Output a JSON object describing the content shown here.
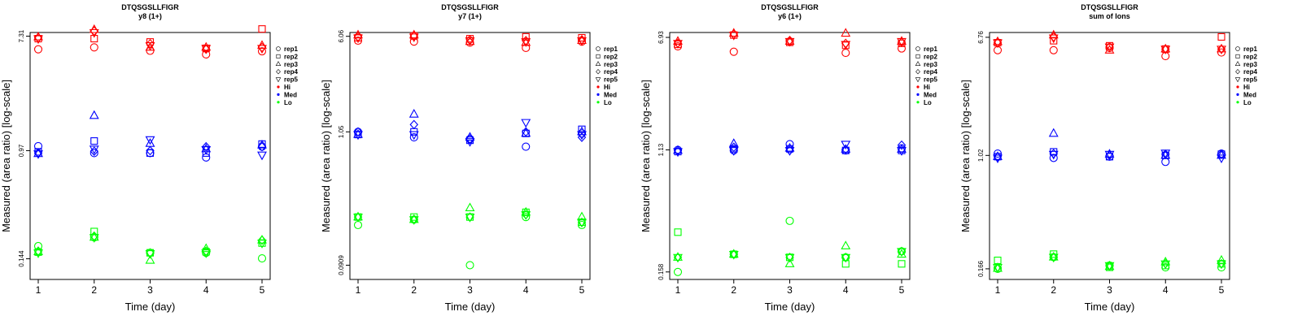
{
  "colors": {
    "Hi": "#ff0000",
    "Med": "#0000ff",
    "Lo": "#00ff00"
  },
  "legend": [
    {
      "label": "rep1",
      "kind": "shape",
      "shape": "circle"
    },
    {
      "label": "rep2",
      "kind": "shape",
      "shape": "square"
    },
    {
      "label": "rep3",
      "kind": "shape",
      "shape": "triangle-up"
    },
    {
      "label": "rep4",
      "kind": "shape",
      "shape": "diamond"
    },
    {
      "label": "rep5",
      "kind": "shape",
      "shape": "triangle-down"
    },
    {
      "label": "Hi",
      "kind": "dot",
      "color": "#ff0000"
    },
    {
      "label": "Med",
      "kind": "dot",
      "color": "#0000ff"
    },
    {
      "label": "Lo",
      "kind": "dot",
      "color": "#00ff00"
    }
  ],
  "chart_data": [
    {
      "type": "scatter",
      "title": "DTQSGSLLFIGR",
      "subtitle": "y8 (1+)",
      "xlabel": "Time (day)",
      "ylabel": "Measured (area ratio) [log-scale]",
      "x": [
        1,
        2,
        3,
        4,
        5
      ],
      "yticks": [
        "0.144",
        "0.97",
        "7.31"
      ],
      "ylim": [
        0.1,
        7.8
      ],
      "yscale": "log",
      "series": [
        {
          "name": "rep1",
          "level": "Hi",
          "values": [
            5.8,
            6.0,
            5.65,
            5.3,
            5.6
          ]
        },
        {
          "name": "rep2",
          "level": "Hi",
          "values": [
            7.0,
            7.0,
            6.6,
            5.9,
            8.3
          ]
        },
        {
          "name": "rep3",
          "level": "Hi",
          "values": [
            7.2,
            8.2,
            6.0,
            6.0,
            6.2
          ]
        },
        {
          "name": "rep4",
          "level": "Hi",
          "values": [
            7.1,
            8.0,
            6.4,
            5.8,
            6.0
          ]
        },
        {
          "name": "rep5",
          "level": "Hi",
          "values": [
            7.0,
            7.8,
            6.2,
            5.9,
            5.9
          ]
        },
        {
          "name": "rep1",
          "level": "Med",
          "values": [
            1.05,
            0.93,
            0.93,
            0.86,
            1.04
          ]
        },
        {
          "name": "rep2",
          "level": "Med",
          "values": [
            0.95,
            1.15,
            0.93,
            0.93,
            1.09
          ]
        },
        {
          "name": "rep3",
          "level": "Med",
          "values": [
            0.92,
            1.8,
            1.1,
            1.0,
            1.07
          ]
        },
        {
          "name": "rep4",
          "level": "Med",
          "values": [
            0.93,
            0.96,
            0.97,
            1.04,
            1.04
          ]
        },
        {
          "name": "rep5",
          "level": "Med",
          "values": [
            0.92,
            1.0,
            1.18,
            0.99,
            0.9
          ]
        },
        {
          "name": "rep1",
          "level": "Lo",
          "values": [
            0.18,
            0.21,
            0.16,
            0.16,
            0.145
          ]
        },
        {
          "name": "rep2",
          "level": "Lo",
          "values": [
            0.162,
            0.233,
            0.16,
            0.163,
            0.19
          ]
        },
        {
          "name": "rep3",
          "level": "Lo",
          "values": [
            0.163,
            0.21,
            0.14,
            0.172,
            0.2
          ]
        },
        {
          "name": "rep4",
          "level": "Lo",
          "values": [
            0.165,
            0.215,
            0.16,
            0.165,
            0.2
          ]
        },
        {
          "name": "rep5",
          "level": "Lo",
          "values": [
            0.16,
            0.21,
            0.158,
            0.16,
            0.19
          ]
        }
      ]
    },
    {
      "type": "scatter",
      "title": "DTQSGSLLFIGR",
      "subtitle": "y7 (1+)",
      "xlabel": "Time (day)",
      "ylabel": "Measured (area ratio) [log-scale]",
      "x": [
        1,
        2,
        3,
        4,
        5
      ],
      "yticks": [
        "0.0909",
        "1.05",
        "6.06"
      ],
      "ylim": [
        0.07,
        6.5
      ],
      "yscale": "log",
      "series": [
        {
          "name": "rep1",
          "level": "Hi",
          "values": [
            5.6,
            5.5,
            5.4,
            4.9,
            5.5
          ]
        },
        {
          "name": "rep2",
          "level": "Hi",
          "values": [
            5.9,
            6.1,
            5.8,
            6.0,
            5.9
          ]
        },
        {
          "name": "rep3",
          "level": "Hi",
          "values": [
            6.2,
            6.2,
            5.5,
            5.4,
            5.6
          ]
        },
        {
          "name": "rep4",
          "level": "Hi",
          "values": [
            6.0,
            6.1,
            5.7,
            5.6,
            5.7
          ]
        },
        {
          "name": "rep5",
          "level": "Hi",
          "values": [
            5.9,
            6.0,
            5.6,
            5.5,
            5.6
          ]
        },
        {
          "name": "rep1",
          "level": "Med",
          "values": [
            1.05,
            0.95,
            0.92,
            0.8,
            1.02
          ]
        },
        {
          "name": "rep2",
          "level": "Med",
          "values": [
            1.0,
            1.05,
            0.9,
            1.02,
            1.1
          ]
        },
        {
          "name": "rep3",
          "level": "Med",
          "values": [
            1.0,
            1.45,
            0.95,
            1.02,
            1.05
          ]
        },
        {
          "name": "rep4",
          "level": "Med",
          "values": [
            1.05,
            1.2,
            0.92,
            1.05,
            0.95
          ]
        },
        {
          "name": "rep5",
          "level": "Med",
          "values": [
            1.0,
            1.0,
            0.88,
            1.25,
            1.0
          ]
        },
        {
          "name": "rep1",
          "level": "Lo",
          "values": [
            0.19,
            0.21,
            0.091,
            0.22,
            0.19
          ]
        },
        {
          "name": "rep2",
          "level": "Lo",
          "values": [
            0.22,
            0.22,
            0.22,
            0.24,
            0.2
          ]
        },
        {
          "name": "rep3",
          "level": "Lo",
          "values": [
            0.22,
            0.21,
            0.26,
            0.24,
            0.22
          ]
        },
        {
          "name": "rep4",
          "level": "Lo",
          "values": [
            0.22,
            0.21,
            0.22,
            0.23,
            0.2
          ]
        },
        {
          "name": "rep5",
          "level": "Lo",
          "values": [
            0.22,
            0.21,
            0.22,
            0.23,
            0.2
          ]
        }
      ]
    },
    {
      "type": "scatter",
      "title": "DTQSGSLLFIGR",
      "subtitle": "y6 (1+)",
      "xlabel": "Time (day)",
      "ylabel": "Measured (area ratio) [log-scale]",
      "x": [
        1,
        2,
        3,
        4,
        5
      ],
      "yticks": [
        "0.158",
        "1.13",
        "6.93"
      ],
      "ylim": [
        0.14,
        7.5
      ],
      "yscale": "log",
      "series": [
        {
          "name": "rep1",
          "level": "Hi",
          "values": [
            6.0,
            5.5,
            6.5,
            5.4,
            5.8
          ]
        },
        {
          "name": "rep2",
          "level": "Hi",
          "values": [
            6.2,
            7.2,
            6.4,
            6.1,
            6.3
          ]
        },
        {
          "name": "rep3",
          "level": "Hi",
          "values": [
            6.5,
            7.4,
            6.5,
            7.4,
            6.5
          ]
        },
        {
          "name": "rep4",
          "level": "Hi",
          "values": [
            6.3,
            7.3,
            6.6,
            6.3,
            6.4
          ]
        },
        {
          "name": "rep5",
          "level": "Hi",
          "values": [
            6.3,
            7.2,
            6.5,
            6.2,
            6.5
          ]
        },
        {
          "name": "rep1",
          "level": "Med",
          "values": [
            1.13,
            1.12,
            1.24,
            1.12,
            1.16
          ]
        },
        {
          "name": "rep2",
          "level": "Med",
          "values": [
            1.1,
            1.15,
            1.15,
            1.12,
            1.12
          ]
        },
        {
          "name": "rep3",
          "level": "Med",
          "values": [
            1.12,
            1.25,
            1.16,
            1.14,
            1.14
          ]
        },
        {
          "name": "rep4",
          "level": "Med",
          "values": [
            1.12,
            1.18,
            1.12,
            1.14,
            1.22
          ]
        },
        {
          "name": "rep5",
          "level": "Med",
          "values": [
            1.1,
            1.12,
            1.12,
            1.24,
            1.12
          ]
        },
        {
          "name": "rep1",
          "level": "Lo",
          "values": [
            0.158,
            0.21,
            0.36,
            0.2,
            0.22
          ]
        },
        {
          "name": "rep2",
          "level": "Lo",
          "values": [
            0.3,
            0.21,
            0.2,
            0.18,
            0.18
          ]
        },
        {
          "name": "rep3",
          "level": "Lo",
          "values": [
            0.2,
            0.21,
            0.18,
            0.24,
            0.21
          ]
        },
        {
          "name": "rep4",
          "level": "Lo",
          "values": [
            0.2,
            0.21,
            0.2,
            0.2,
            0.22
          ]
        },
        {
          "name": "rep5",
          "level": "Lo",
          "values": [
            0.2,
            0.21,
            0.2,
            0.2,
            0.22
          ]
        }
      ]
    },
    {
      "type": "scatter",
      "title": "DTQSGSLLFIGR",
      "subtitle": "sum of Ions",
      "xlabel": "Time (day)",
      "ylabel": "Measured (area ratio) [log-scale]",
      "x": [
        1,
        2,
        3,
        4,
        5
      ],
      "yticks": [
        "0.166",
        "1.02",
        "6.76"
      ],
      "ylim": [
        0.14,
        7.3
      ],
      "yscale": "log",
      "series": [
        {
          "name": "rep1",
          "level": "Hi",
          "values": [
            5.5,
            5.5,
            5.7,
            5.0,
            5.3
          ]
        },
        {
          "name": "rep2",
          "level": "Hi",
          "values": [
            6.2,
            6.4,
            5.9,
            5.6,
            6.8
          ]
        },
        {
          "name": "rep3",
          "level": "Hi",
          "values": [
            6.3,
            7.0,
            5.5,
            5.6,
            5.6
          ]
        },
        {
          "name": "rep4",
          "level": "Hi",
          "values": [
            6.2,
            6.8,
            5.8,
            5.6,
            5.6
          ]
        },
        {
          "name": "rep5",
          "level": "Hi",
          "values": [
            6.2,
            6.7,
            5.8,
            5.6,
            5.6
          ]
        },
        {
          "name": "rep1",
          "level": "Med",
          "values": [
            1.05,
            0.98,
            1.0,
            0.92,
            1.05
          ]
        },
        {
          "name": "rep2",
          "level": "Med",
          "values": [
            1.0,
            1.08,
            1.0,
            1.02,
            1.04
          ]
        },
        {
          "name": "rep3",
          "level": "Med",
          "values": [
            1.0,
            1.45,
            1.04,
            1.02,
            1.02
          ]
        },
        {
          "name": "rep4",
          "level": "Med",
          "values": [
            1.0,
            1.05,
            1.02,
            1.04,
            1.04
          ]
        },
        {
          "name": "rep5",
          "level": "Med",
          "values": [
            0.98,
            1.04,
            1.04,
            1.06,
            0.98
          ]
        },
        {
          "name": "rep1",
          "level": "Lo",
          "values": [
            0.166,
            0.2,
            0.175,
            0.17,
            0.17
          ]
        },
        {
          "name": "rep2",
          "level": "Lo",
          "values": [
            0.19,
            0.21,
            0.17,
            0.175,
            0.18
          ]
        },
        {
          "name": "rep3",
          "level": "Lo",
          "values": [
            0.167,
            0.2,
            0.172,
            0.185,
            0.19
          ]
        },
        {
          "name": "rep4",
          "level": "Lo",
          "values": [
            0.17,
            0.2,
            0.175,
            0.18,
            0.18
          ]
        },
        {
          "name": "rep5",
          "level": "Lo",
          "values": [
            0.17,
            0.2,
            0.175,
            0.18,
            0.18
          ]
        }
      ]
    }
  ]
}
